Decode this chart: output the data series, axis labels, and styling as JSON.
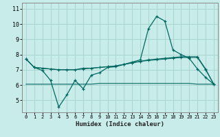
{
  "xlabel": "Humidex (Indice chaleur)",
  "background_color": "#c8ecea",
  "grid_color": "#aad4d0",
  "line_color": "#006860",
  "x": [
    0,
    1,
    2,
    3,
    4,
    5,
    6,
    7,
    8,
    9,
    10,
    11,
    12,
    13,
    14,
    15,
    16,
    17,
    18,
    19,
    20,
    21,
    22,
    23
  ],
  "line1": [
    7.7,
    7.15,
    6.95,
    6.3,
    4.55,
    5.35,
    6.3,
    5.75,
    6.65,
    6.8,
    7.15,
    7.2,
    7.35,
    7.5,
    7.65,
    9.7,
    10.5,
    10.2,
    8.3,
    8.0,
    7.75,
    7.05,
    6.5,
    6.05
  ],
  "line2": [
    7.7,
    7.15,
    7.1,
    7.05,
    7.0,
    7.0,
    7.0,
    7.1,
    7.1,
    7.15,
    7.2,
    7.25,
    7.35,
    7.45,
    7.55,
    7.65,
    7.7,
    7.75,
    7.8,
    7.85,
    7.85,
    7.85,
    7.05,
    6.05
  ],
  "line3": [
    7.7,
    7.15,
    7.1,
    7.05,
    7.0,
    7.0,
    7.0,
    7.05,
    7.1,
    7.15,
    7.2,
    7.25,
    7.35,
    7.45,
    7.55,
    7.6,
    7.65,
    7.7,
    7.75,
    7.8,
    7.8,
    7.8,
    7.0,
    6.05
  ],
  "line4": [
    6.05,
    6.05,
    6.05,
    6.05,
    6.05,
    6.05,
    6.05,
    6.05,
    6.05,
    6.1,
    6.1,
    6.1,
    6.1,
    6.1,
    6.1,
    6.1,
    6.1,
    6.1,
    6.1,
    6.1,
    6.1,
    6.05,
    6.05,
    6.05
  ],
  "ylim": [
    4.2,
    11.4
  ],
  "yticks": [
    5,
    6,
    7,
    8,
    9,
    10,
    11
  ],
  "xticks": [
    0,
    1,
    2,
    3,
    4,
    5,
    6,
    7,
    8,
    9,
    10,
    11,
    12,
    13,
    14,
    15,
    16,
    17,
    18,
    19,
    20,
    21,
    22,
    23
  ]
}
